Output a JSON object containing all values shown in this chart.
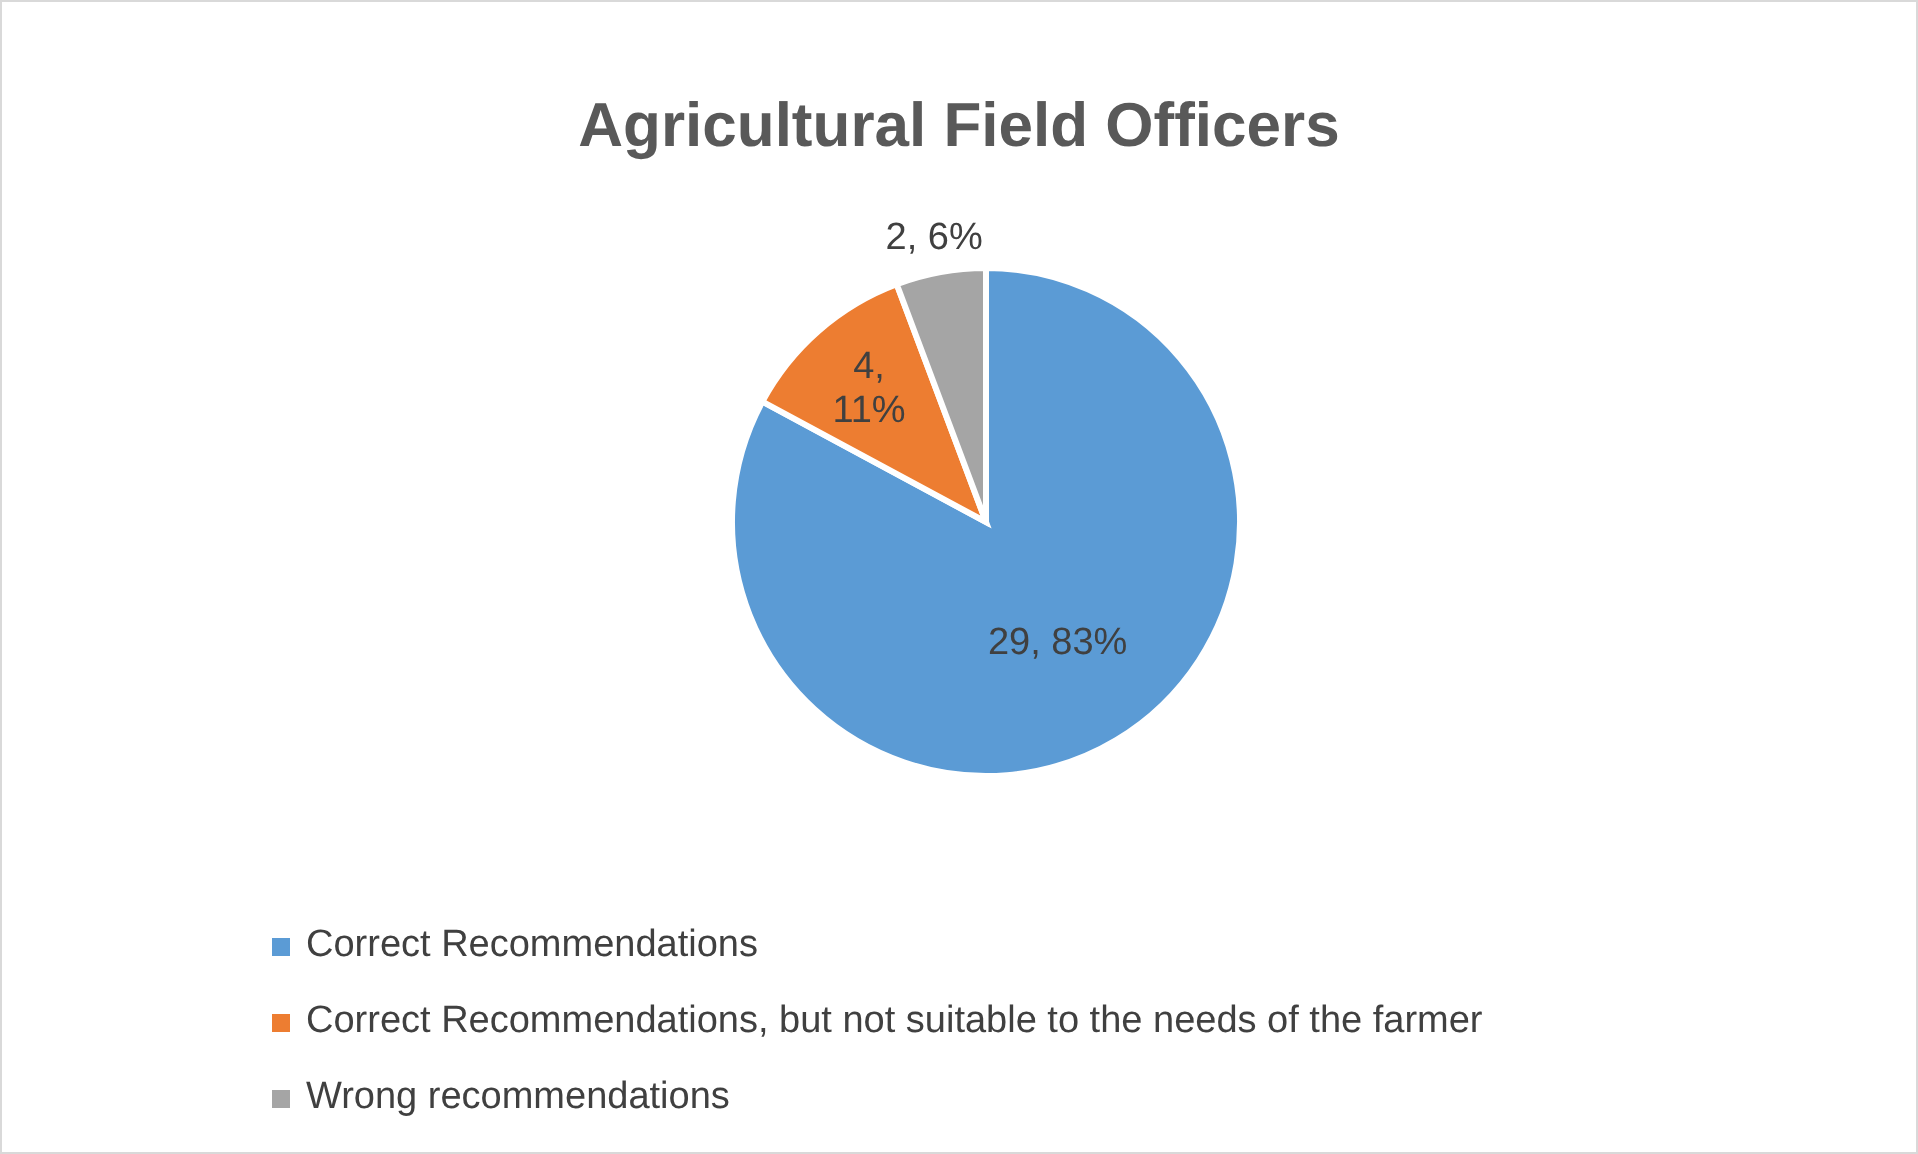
{
  "chart_data": {
    "type": "pie",
    "title": "Agricultural Field Officers",
    "categories": [
      "Correct Recommendations",
      "Correct Recommendations, but not suitable to the needs of the farmer",
      "Wrong recommendations"
    ],
    "values": [
      29,
      4,
      2
    ],
    "colors": [
      "#5b9bd5",
      "#ed7d31",
      "#a5a5a5"
    ],
    "value_labels": [
      "29, 83%",
      "4, 11%",
      "2, 6%"
    ],
    "legend": "bottom"
  }
}
